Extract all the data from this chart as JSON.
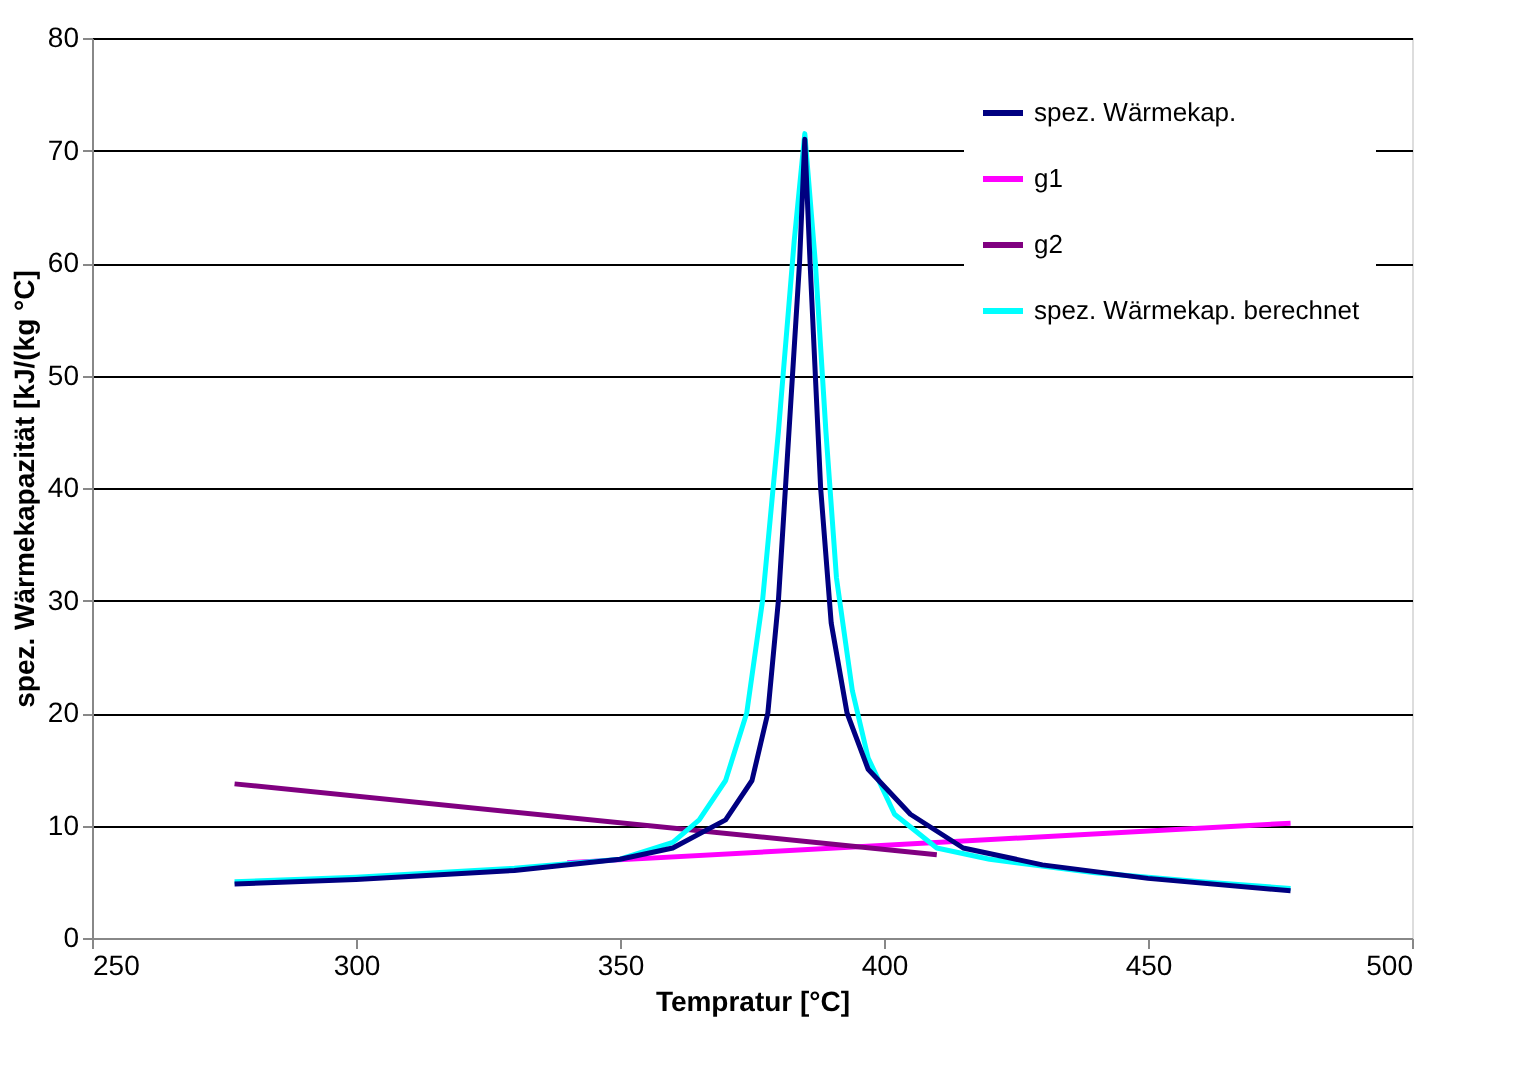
{
  "chart_data": {
    "type": "line",
    "xlabel": "Tempratur [°C]",
    "ylabel": "spez. Wärmekapazität [kJ/(kg °C]",
    "xlim": [
      250,
      500
    ],
    "xticks": [
      250,
      300,
      350,
      400,
      450,
      500
    ],
    "ylim": [
      0,
      80
    ],
    "yticks": [
      0,
      10,
      20,
      30,
      40,
      50,
      60,
      70,
      80
    ],
    "grid": "y",
    "legend": "top right",
    "marker": "none",
    "line_style": "solid",
    "series": [
      {
        "name": "g1",
        "color": "#ff00ff",
        "x": [
          340,
          477
        ],
        "values": [
          6.7,
          10.2
        ]
      },
      {
        "name": "g2",
        "color": "#800080",
        "x": [
          277,
          410
        ],
        "values": [
          13.7,
          7.4
        ]
      },
      {
        "name": "spez. Wärmekap. berechnet",
        "color": "#00ffff",
        "x": [
          277,
          300,
          330,
          350,
          360,
          365,
          370,
          374,
          377,
          380,
          383,
          385,
          387,
          389,
          391,
          394,
          397,
          402,
          410,
          420,
          440,
          460,
          477
        ],
        "values": [
          5,
          5.4,
          6.2,
          7,
          8.5,
          10.5,
          14,
          20,
          30,
          45,
          62,
          71.5,
          60,
          45,
          32,
          22,
          16,
          11,
          8,
          7,
          5.8,
          5,
          4.4
        ]
      },
      {
        "name": "spez. Wärmekap.",
        "color": "#000080",
        "x": [
          277,
          300,
          330,
          350,
          360,
          370,
          375,
          378,
          380,
          382,
          384,
          385,
          386,
          388,
          390,
          393,
          397,
          405,
          415,
          430,
          450,
          477
        ],
        "values": [
          4.8,
          5.2,
          6,
          7,
          8,
          10.5,
          14,
          20,
          30,
          45,
          60,
          71,
          60,
          40,
          28,
          20,
          15,
          11,
          8,
          6.5,
          5.3,
          4.2
        ]
      }
    ]
  }
}
